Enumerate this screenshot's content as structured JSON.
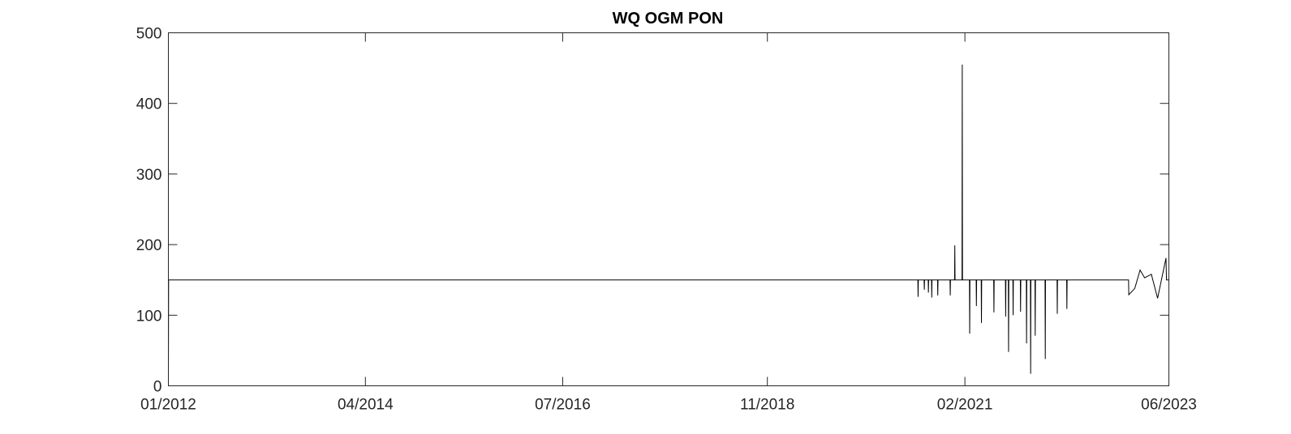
{
  "chart_data": {
    "type": "line",
    "title": "WQ OGM PON",
    "xlabel": "",
    "ylabel": "",
    "xlim": [
      "2012-01-01",
      "2023-06-01"
    ],
    "ylim": [
      0,
      500
    ],
    "grid": false,
    "x_ticks": [
      {
        "date": "2012-01-01",
        "label": "01/2012"
      },
      {
        "date": "2014-04-01",
        "label": "04/2014"
      },
      {
        "date": "2016-07-01",
        "label": "07/2016"
      },
      {
        "date": "2018-11-01",
        "label": "11/2018"
      },
      {
        "date": "2021-02-01",
        "label": "02/2021"
      },
      {
        "date": "2023-06-01",
        "label": "06/2023"
      }
    ],
    "y_ticks": [
      0,
      100,
      200,
      300,
      400,
      500
    ],
    "series": [
      {
        "color": "#000000",
        "points": [
          [
            "2012-01-01",
            0
          ],
          [
            "2012-01-02",
            150
          ],
          [
            "2020-07-20",
            150
          ],
          [
            "2020-07-21",
            126
          ],
          [
            "2020-07-22",
            150
          ],
          [
            "2020-08-15",
            150
          ],
          [
            "2020-08-16",
            136
          ],
          [
            "2020-08-17",
            150
          ],
          [
            "2020-09-01",
            150
          ],
          [
            "2020-09-02",
            132
          ],
          [
            "2020-09-03",
            150
          ],
          [
            "2020-09-15",
            150
          ],
          [
            "2020-09-16",
            125
          ],
          [
            "2020-09-17",
            150
          ],
          [
            "2020-10-10",
            150
          ],
          [
            "2020-10-11",
            128
          ],
          [
            "2020-10-12",
            150
          ],
          [
            "2020-12-01",
            150
          ],
          [
            "2020-12-02",
            128
          ],
          [
            "2020-12-03",
            150
          ],
          [
            "2020-12-20",
            150
          ],
          [
            "2020-12-21",
            199
          ],
          [
            "2020-12-22",
            150
          ],
          [
            "2021-01-20",
            150
          ],
          [
            "2021-01-21",
            455
          ],
          [
            "2021-01-22",
            150
          ],
          [
            "2021-02-20",
            150
          ],
          [
            "2021-02-21",
            74
          ],
          [
            "2021-02-22",
            150
          ],
          [
            "2021-03-20",
            150
          ],
          [
            "2021-03-21",
            113
          ],
          [
            "2021-03-22",
            150
          ],
          [
            "2021-04-10",
            150
          ],
          [
            "2021-04-11",
            89
          ],
          [
            "2021-04-12",
            150
          ],
          [
            "2021-06-01",
            150
          ],
          [
            "2021-06-02",
            104
          ],
          [
            "2021-06-03",
            150
          ],
          [
            "2021-07-20",
            150
          ],
          [
            "2021-07-21",
            98
          ],
          [
            "2021-07-22",
            150
          ],
          [
            "2021-08-01",
            150
          ],
          [
            "2021-08-02",
            48
          ],
          [
            "2021-08-03",
            150
          ],
          [
            "2021-08-20",
            150
          ],
          [
            "2021-08-21",
            100
          ],
          [
            "2021-08-22",
            150
          ],
          [
            "2021-09-20",
            150
          ],
          [
            "2021-09-21",
            105
          ],
          [
            "2021-09-22",
            150
          ],
          [
            "2021-10-15",
            150
          ],
          [
            "2021-10-16",
            60
          ],
          [
            "2021-10-17",
            150
          ],
          [
            "2021-11-01",
            150
          ],
          [
            "2021-11-02",
            17
          ],
          [
            "2021-11-03",
            150
          ],
          [
            "2021-11-20",
            150
          ],
          [
            "2021-11-21",
            71
          ],
          [
            "2021-11-22",
            150
          ],
          [
            "2022-01-01",
            150
          ],
          [
            "2022-01-02",
            38
          ],
          [
            "2022-01-03",
            150
          ],
          [
            "2022-02-20",
            150
          ],
          [
            "2022-02-21",
            102
          ],
          [
            "2022-02-22",
            150
          ],
          [
            "2022-04-01",
            150
          ],
          [
            "2022-04-02",
            109
          ],
          [
            "2022-04-03",
            150
          ],
          [
            "2022-12-15",
            150
          ],
          [
            "2022-12-16",
            129
          ],
          [
            "2023-01-10",
            138
          ],
          [
            "2023-02-01",
            164
          ],
          [
            "2023-02-20",
            153
          ],
          [
            "2023-03-20",
            158
          ],
          [
            "2023-04-15",
            124
          ],
          [
            "2023-05-20",
            181
          ],
          [
            "2023-05-22",
            150
          ],
          [
            "2023-06-01",
            150
          ]
        ]
      }
    ]
  }
}
